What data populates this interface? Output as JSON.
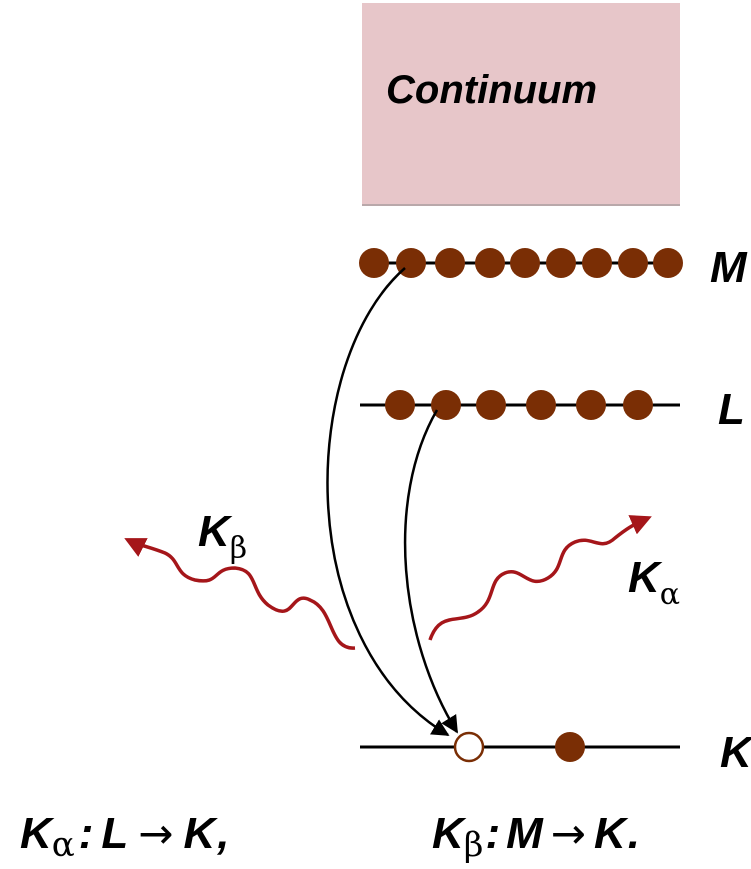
{
  "continuum": {
    "label": "Continuum",
    "fill": "#e7c6c9"
  },
  "levels": {
    "m": {
      "label": "M",
      "electrons": 9
    },
    "l": {
      "label": "L",
      "electrons": 6
    },
    "k": {
      "label": "K",
      "electrons": 1,
      "vacancies": 1
    }
  },
  "emissions": {
    "k_beta": {
      "main": "K",
      "sub": "β"
    },
    "k_alpha": {
      "main": "K",
      "sub": "α"
    }
  },
  "captions": {
    "left": {
      "k": "K",
      "sub": "α",
      "colon": ":",
      "from": "L",
      "arrow": "→",
      "to": "K",
      "end": ","
    },
    "right": {
      "k": "K",
      "sub": "β",
      "colon": ":",
      "from": "M",
      "arrow": "→",
      "to": "K",
      "end": "."
    }
  },
  "colors": {
    "electron": "#7a2e05",
    "photon": "#a5161a",
    "line": "#000000"
  }
}
